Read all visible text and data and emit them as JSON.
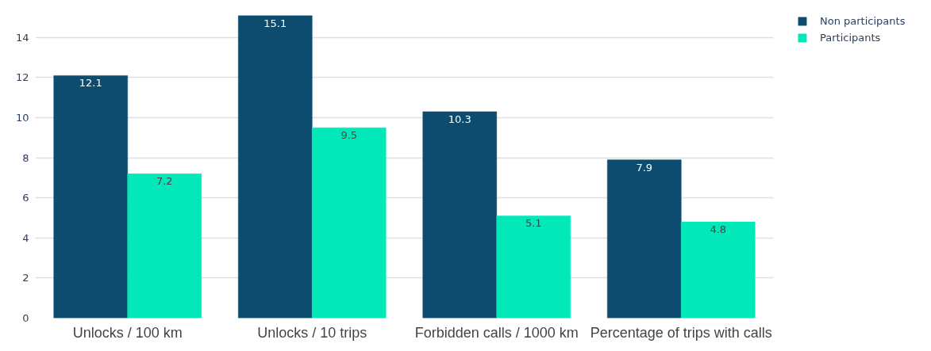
{
  "chart_data": {
    "type": "bar",
    "categories": [
      "Unlocks / 100 km",
      "Unlocks / 10 trips",
      "Forbidden calls / 1000 km",
      "Percentage of trips with calls"
    ],
    "series": [
      {
        "name": "Non participants",
        "color": "#0d4c6e",
        "values": [
          12.1,
          15.1,
          10.3,
          7.9
        ]
      },
      {
        "name": "Participants",
        "color": "#02e8b9",
        "values": [
          7.2,
          9.5,
          5.1,
          4.8
        ]
      }
    ],
    "ylim": [
      0,
      15.1
    ],
    "yticks": [
      0,
      2,
      4,
      6,
      8,
      10,
      12,
      14
    ],
    "grid": "y",
    "legend": "top right",
    "data_labels": true
  }
}
